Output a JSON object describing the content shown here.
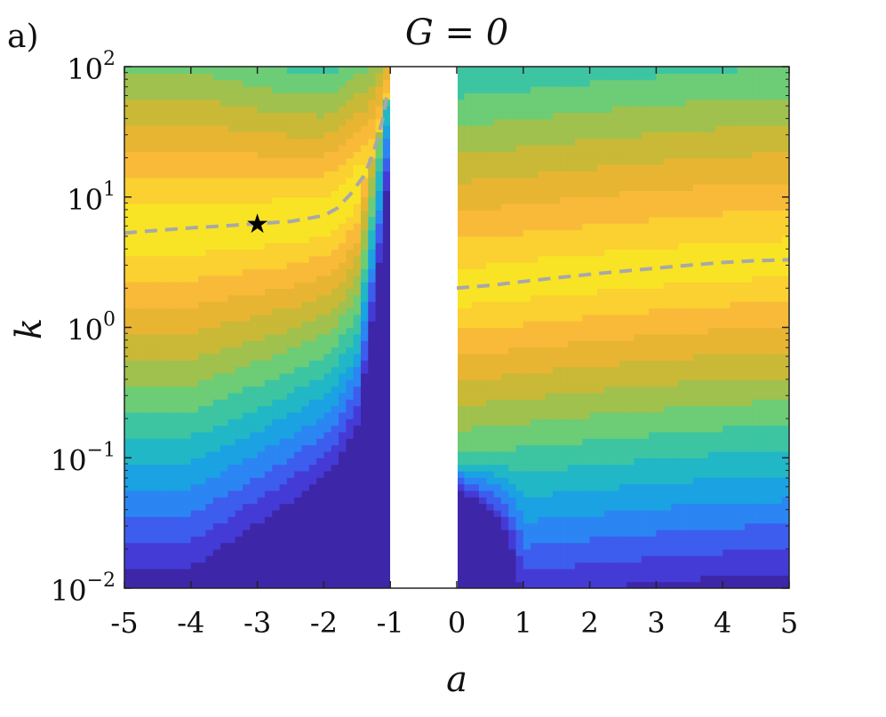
{
  "panel_label": "a)",
  "chart_data": {
    "type": "heatmap",
    "title": "G = 0",
    "xlabel": "a",
    "ylabel": "k",
    "xlim": [
      -5,
      5
    ],
    "ylim": [
      0.01,
      100
    ],
    "y_scale": "log",
    "x_ticks": [
      "-5",
      "-4",
      "-3",
      "-2",
      "-1",
      "0",
      "1",
      "2",
      "3",
      "4",
      "5"
    ],
    "x_tick_values": [
      -5,
      -4,
      -3,
      -2,
      -1,
      0,
      1,
      2,
      3,
      4,
      5
    ],
    "y_ticks": [
      {
        "base": "10",
        "exp": "−2",
        "value": 0.01
      },
      {
        "base": "10",
        "exp": "−1",
        "value": 0.1
      },
      {
        "base": "10",
        "exp": "0",
        "value": 1
      },
      {
        "base": "10",
        "exp": "1",
        "value": 10
      },
      {
        "base": "10",
        "exp": "2",
        "value": 100
      }
    ],
    "excluded_band": [
      -1,
      0
    ],
    "colormap": [
      "#3e26a8",
      "#4743e8",
      "#2f7ff6",
      "#16a8e0",
      "#2ac2b3",
      "#6dcc76",
      "#b4bd3c",
      "#e4b431",
      "#fdbb3a",
      "#f9e02a",
      "#f5ef1a"
    ],
    "grid": false,
    "legend": "none",
    "series": [
      {
        "style": "dashed",
        "color": "#a8a8a8",
        "x": [
          -5,
          -4.5,
          -4,
          -3.5,
          -3,
          -2.5,
          -2,
          -1.8,
          -1.6,
          -1.4,
          -1.3,
          -1.2,
          -1.1,
          -1.05
        ],
        "y": [
          5.3,
          5.55,
          5.8,
          6.0,
          6.25,
          6.5,
          7.2,
          8.2,
          10.5,
          14.5,
          19,
          27,
          42,
          62
        ]
      },
      {
        "style": "dashed",
        "color": "#a8a8a8",
        "x": [
          0,
          0.5,
          1,
          1.5,
          2,
          2.5,
          3,
          3.5,
          4,
          4.5,
          5
        ],
        "y": [
          2.0,
          2.1,
          2.25,
          2.4,
          2.55,
          2.7,
          2.85,
          3.0,
          3.15,
          3.25,
          3.3
        ]
      }
    ],
    "marker": {
      "symbol": "★",
      "x": -3,
      "y": 6.3,
      "color": "#000000"
    }
  }
}
